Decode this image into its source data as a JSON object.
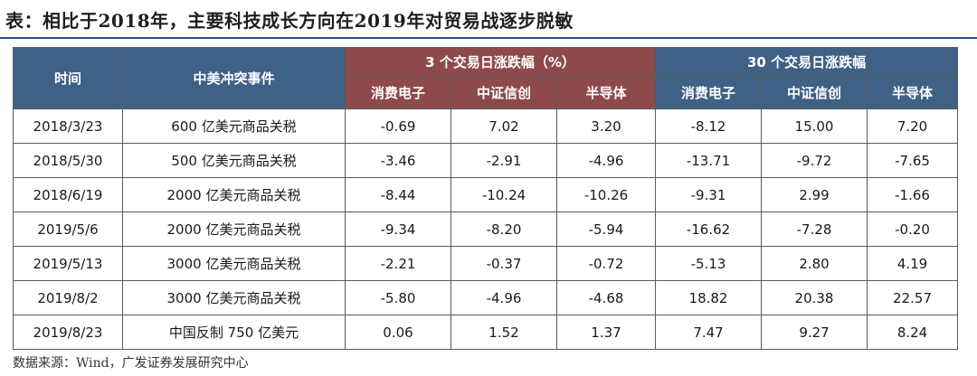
{
  "title": "表：相比于2018年，主要科技成长方向在2019年对贸易战逐步脱敏",
  "source": "数据来源：Wind，广发证券发展研究中心",
  "colors": {
    "header_main": "#3f6185",
    "header_3day": "#8e4a4a",
    "header_30day": "#3f6185",
    "positive": "#ee2020",
    "negative": "#22a83a"
  },
  "headers": {
    "time": "时间",
    "event": "中美冲突事件",
    "group_3day": "3 个交易日涨跌幅（%）",
    "group_30day": "30 个交易日涨跌幅",
    "sub": [
      "消费电子",
      "中证信创",
      "半导体",
      "消费电子",
      "中证信创",
      "半导体"
    ]
  },
  "chart_data": {
    "type": "table",
    "title": "表：相比于2018年，主要科技成长方向在2019年对贸易战逐步脱敏",
    "columns": [
      "时间",
      "中美冲突事件",
      "3日-消费电子",
      "3日-中证信创",
      "3日-半导体",
      "30日-消费电子",
      "30日-中证信创",
      "30日-半导体"
    ],
    "rows": [
      {
        "date": "2018/3/23",
        "event": "600 亿美元商品关税",
        "values": [
          "-0.69",
          "7.02",
          "3.20",
          "-8.12",
          "15.00",
          "7.20"
        ]
      },
      {
        "date": "2018/5/30",
        "event": "500 亿美元商品关税",
        "values": [
          "-3.46",
          "-2.91",
          "-4.96",
          "-13.71",
          "-9.72",
          "-7.65"
        ]
      },
      {
        "date": "2018/6/19",
        "event": "2000 亿美元商品关税",
        "values": [
          "-8.44",
          "-10.24",
          "-10.26",
          "-9.31",
          "2.99",
          "-1.66"
        ]
      },
      {
        "date": "2019/5/6",
        "event": "2000 亿美元商品关税",
        "values": [
          "-9.34",
          "-8.20",
          "-5.94",
          "-16.62",
          "-7.28",
          "-0.20"
        ]
      },
      {
        "date": "2019/5/13",
        "event": "3000 亿美元商品关税",
        "values": [
          "-2.21",
          "-0.37",
          "-0.72",
          "-5.13",
          "2.80",
          "4.19"
        ]
      },
      {
        "date": "2019/8/2",
        "event": "3000 亿美元商品关税",
        "values": [
          "-5.80",
          "-4.96",
          "-4.68",
          "18.82",
          "20.38",
          "22.57"
        ]
      },
      {
        "date": "2019/8/23",
        "event": "中国反制 750 亿美元",
        "values": [
          "0.06",
          "1.52",
          "1.37",
          "7.47",
          "9.27",
          "8.24"
        ]
      }
    ]
  }
}
